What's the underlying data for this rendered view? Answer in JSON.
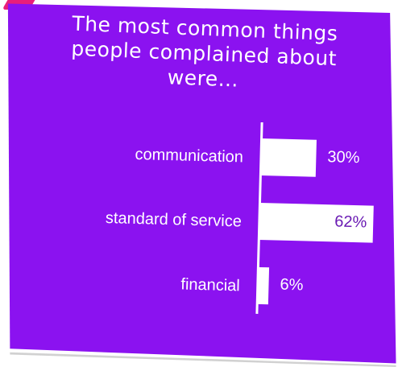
{
  "title_lines": [
    "The most common things",
    "people complained about",
    "were…"
  ],
  "colors": {
    "background": "#8b12f0",
    "bar": "#ffffff",
    "value_text": "#6a1bb3",
    "accent": "#e91e7a"
  },
  "chart_data": {
    "type": "bar",
    "orientation": "horizontal",
    "title": "The most common things people complained about were…",
    "categories": [
      "communication",
      "standard of service",
      "financial"
    ],
    "values": [
      30,
      62,
      6
    ],
    "value_labels": [
      "30%",
      "62%",
      "6%"
    ],
    "unit": "%",
    "xlim": [
      0,
      100
    ],
    "grid": false,
    "legend": "none"
  }
}
